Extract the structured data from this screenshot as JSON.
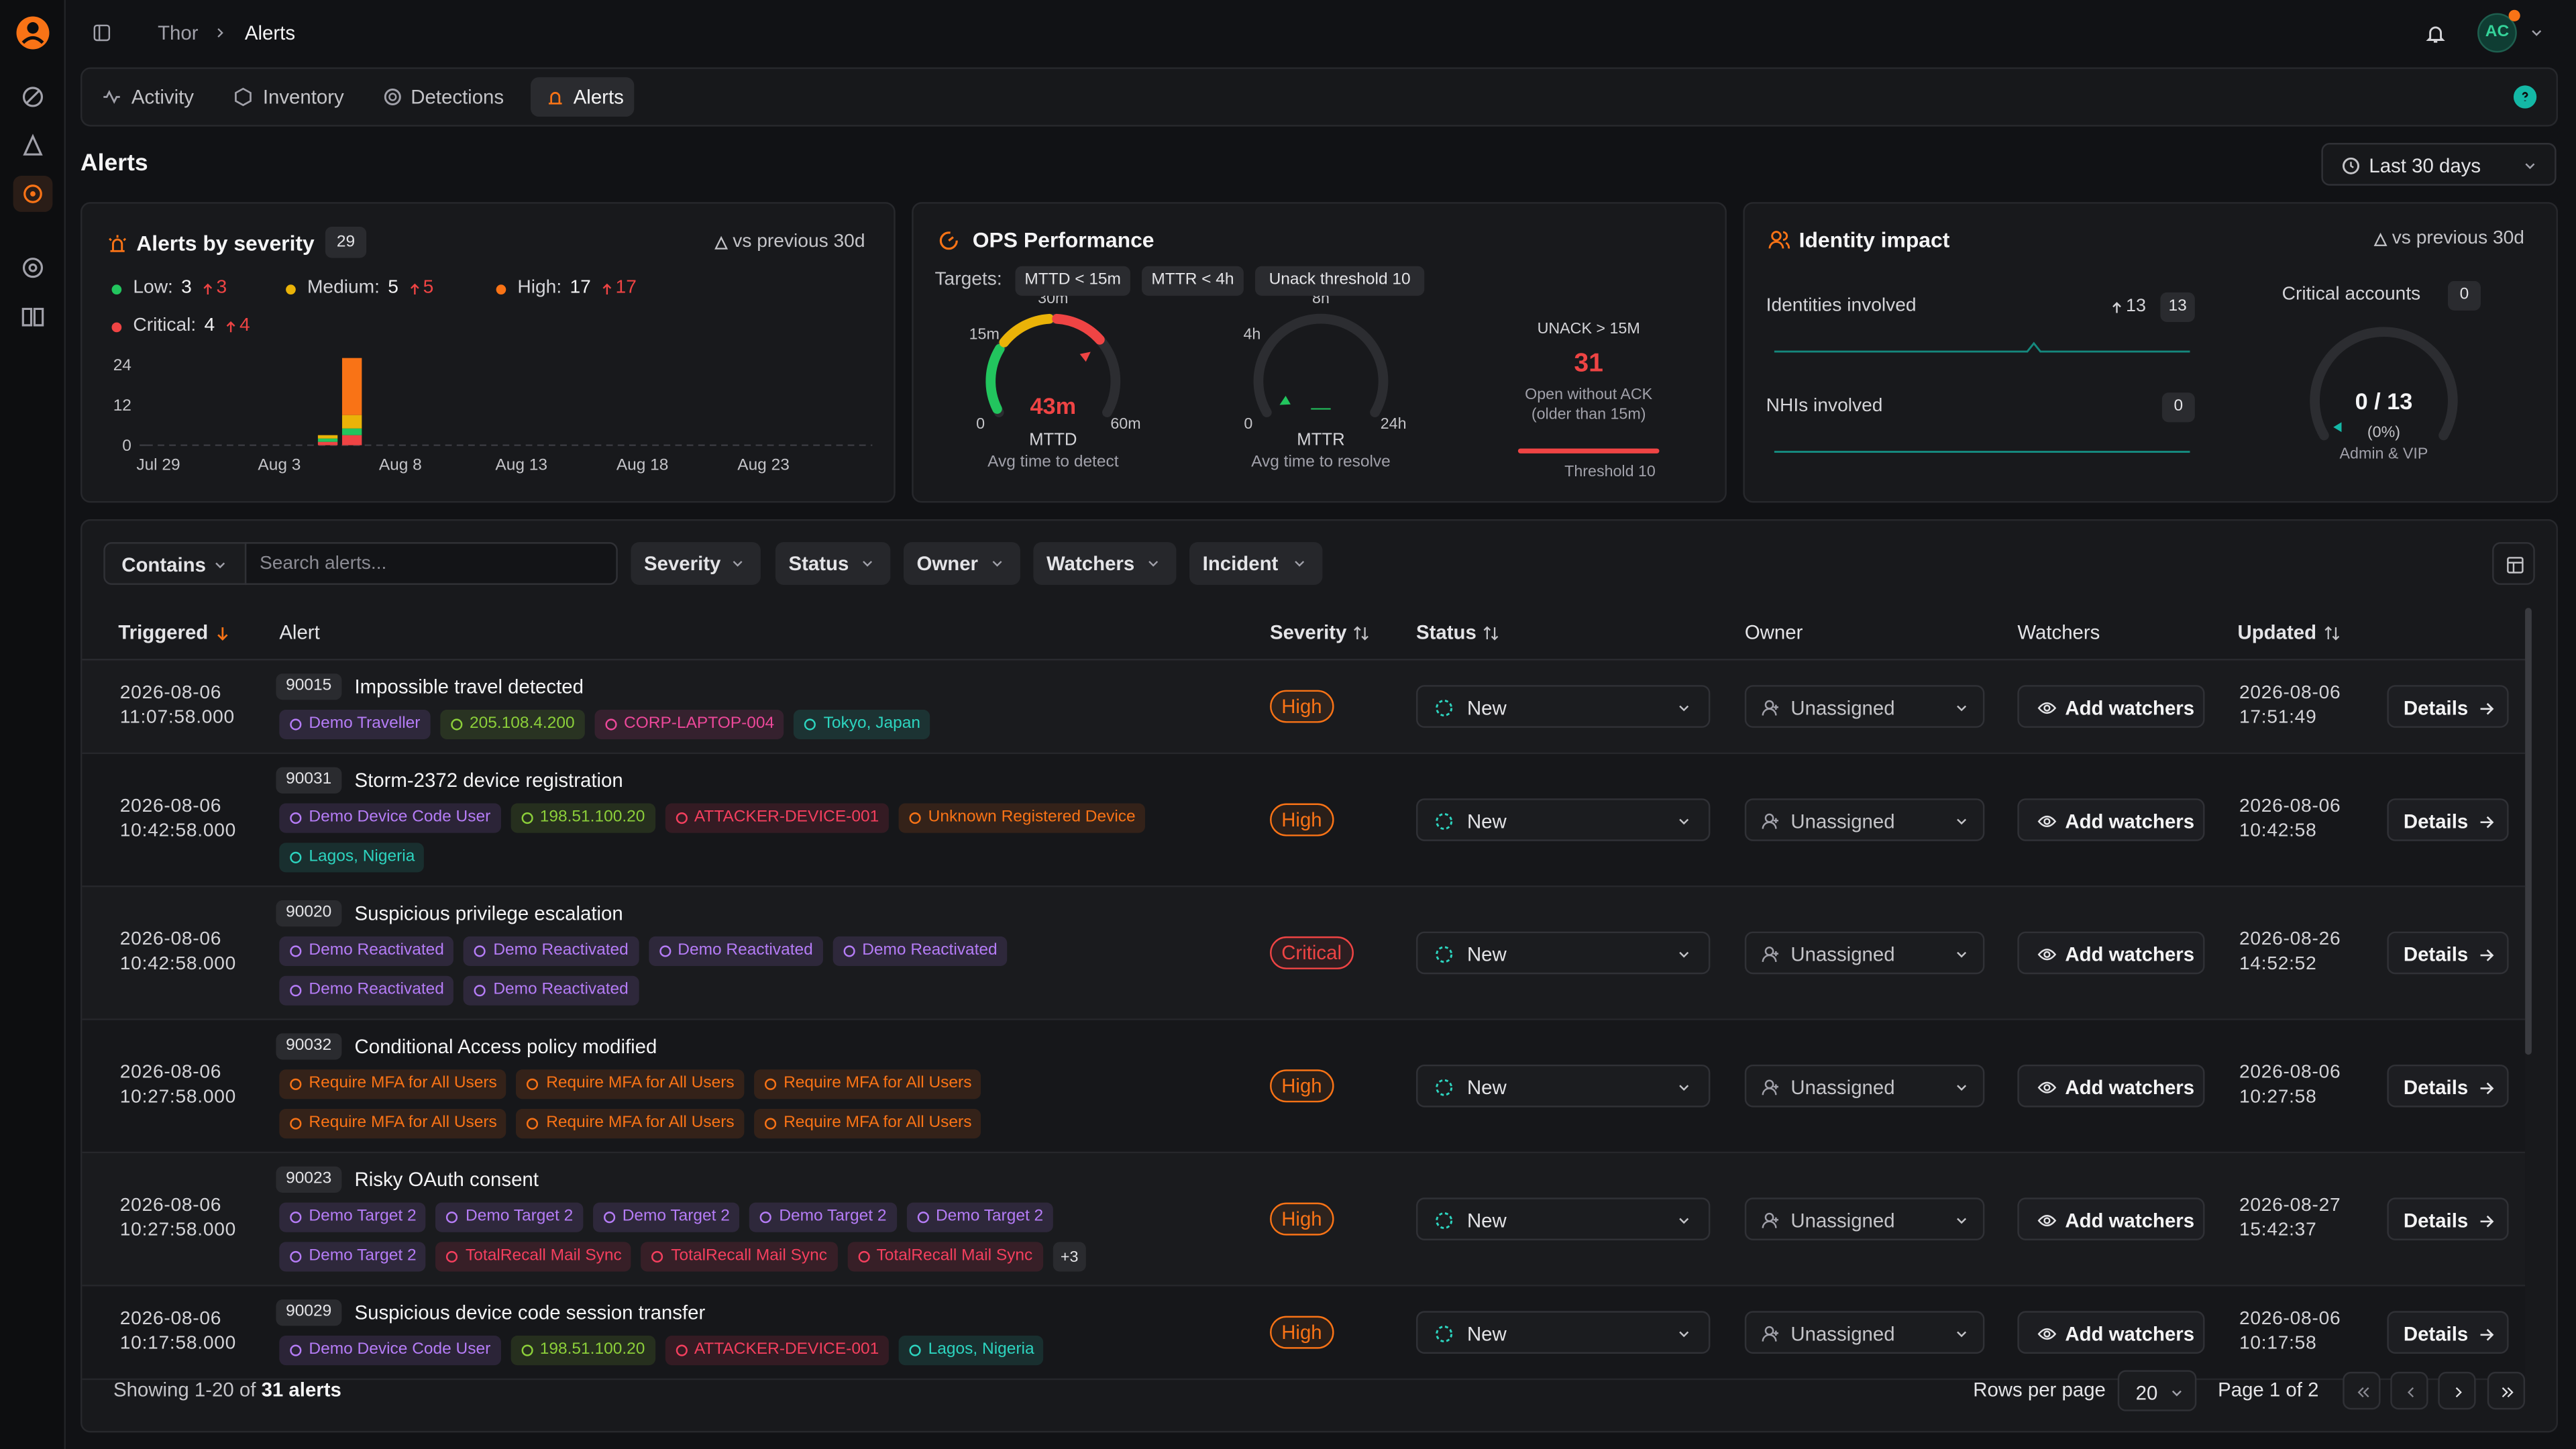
{
  "breadcrumb": [
    "Thor",
    "Alerts"
  ],
  "user_initials": "AC",
  "tabs": [
    "Activity",
    "Inventory",
    "Detections",
    "Alerts"
  ],
  "active_tab": 3,
  "page_title": "Alerts",
  "date_range": "Last 30 days",
  "severity_card": {
    "title": "Alerts by severity",
    "count": 29,
    "compare": "vs previous 30d",
    "legend": [
      {
        "label": "Low:",
        "value": 3,
        "delta": 3,
        "color": "#22c55e"
      },
      {
        "label": "Medium:",
        "value": 5,
        "delta": 5,
        "color": "#eab308"
      },
      {
        "label": "High:",
        "value": 17,
        "delta": 17,
        "color": "#f97316"
      },
      {
        "label": "Critical:",
        "value": 4,
        "delta": 4,
        "color": "#ef4444"
      }
    ],
    "chart": {
      "type": "bar",
      "stacked": true,
      "categories": [
        "Jul 29",
        null,
        null,
        null,
        null,
        "Aug 3",
        null,
        null,
        null,
        null,
        "Aug 8",
        null,
        null,
        null,
        null,
        "Aug 13",
        null,
        null,
        null,
        null,
        "Aug 18",
        null,
        null,
        null,
        null,
        "Aug 23",
        null,
        null,
        null,
        null
      ],
      "series": [
        {
          "color": "#ef4444",
          "values": [
            0,
            0,
            0,
            0,
            0,
            0,
            0,
            1,
            3,
            0,
            0,
            0,
            0,
            0,
            0,
            0,
            0,
            0,
            0,
            0,
            0,
            0,
            0,
            0,
            0,
            0,
            0,
            0,
            0,
            0
          ]
        },
        {
          "color": "#22c55e",
          "values": [
            0,
            0,
            0,
            0,
            0,
            0,
            0,
            1,
            2,
            0,
            0,
            0,
            0,
            0,
            0,
            0,
            0,
            0,
            0,
            0,
            0,
            0,
            0,
            0,
            0,
            0,
            0,
            0,
            0,
            0
          ]
        },
        {
          "color": "#eab308",
          "values": [
            0,
            0,
            0,
            0,
            0,
            0,
            0,
            1,
            4,
            0,
            0,
            0,
            0,
            0,
            0,
            0,
            0,
            0,
            0,
            0,
            0,
            0,
            0,
            0,
            0,
            0,
            0,
            0,
            0,
            0
          ]
        },
        {
          "color": "#f97316",
          "values": [
            0,
            0,
            0,
            0,
            0,
            0,
            0,
            0,
            17,
            0,
            0,
            0,
            0,
            0,
            0,
            0,
            0,
            0,
            0,
            0,
            0,
            0,
            0,
            0,
            0,
            0,
            0,
            0,
            0,
            0
          ]
        }
      ],
      "ylim": [
        0,
        26
      ],
      "yticks": [
        0,
        12,
        24
      ],
      "grid": false
    }
  },
  "ops": {
    "title": "OPS Performance",
    "targets_label": "Targets:",
    "targets": [
      "MTTD < 15m",
      "MTTR < 4h",
      "Unack threshold 10"
    ],
    "mttd": {
      "value": 43,
      "value_label": "43m",
      "ticks": [
        0,
        {
          "value": 15,
          "label": "15m"
        },
        {
          "value": 30,
          "label": "30m"
        },
        {
          "value": 60,
          "label": "60m"
        }
      ],
      "zone_colors": [
        "#22c55e",
        "#eab308",
        "#ef4444"
      ],
      "name": "MTTD",
      "caption": "Avg time to detect"
    },
    "mttr": {
      "value": null,
      "value_label": "—",
      "ticks": [
        0,
        {
          "value": 4,
          "label": "4h"
        },
        {
          "value": 8,
          "label": "8h"
        },
        {
          "value": 24,
          "label": "24h"
        }
      ],
      "zone_colors": [
        "#22c55e",
        "#eab308",
        "#ef4444"
      ],
      "name": "MTTR",
      "caption": "Avg time to resolve"
    },
    "unack": {
      "label": "UNACK > 15M",
      "value": 31,
      "desc": [
        "Open without ACK",
        "(older than 15m)"
      ],
      "threshold_label": "Threshold",
      "threshold": 10
    }
  },
  "identity": {
    "title": "Identity impact",
    "compare": "vs previous 30d",
    "identities_label": "Identities involved",
    "identities_delta": 13,
    "identities": 13,
    "nhis_label": "NHIs involved",
    "nhis": 0,
    "critical_label": "Critical accounts",
    "critical": 0,
    "critical_total": 13,
    "ratio": "0 / 13",
    "pct": "(0%)",
    "scope": "Admin & VIP"
  },
  "filters": {
    "match": "Contains",
    "search_placeholder": "Search alerts...",
    "buttons": [
      "Severity",
      "Status",
      "Owner",
      "Watchers",
      "Incident"
    ]
  },
  "columns": [
    "Triggered",
    "Alert",
    "Severity",
    "Status",
    "Owner",
    "Watchers",
    "Updated"
  ],
  "severity_colors": {
    "High": "#f97316",
    "Critical": "#ef4444"
  },
  "labels": {
    "add_watchers": "Add watchers",
    "details": "Details"
  },
  "rows": [
    {
      "date": "2026-08-06",
      "time": "11:07:58.000",
      "id": 90015,
      "title": "Impossible travel detected",
      "tags": [
        {
          "text": "Demo Traveller",
          "color": "#b57cf6"
        },
        {
          "text": "205.108.4.200",
          "color": "#8ccf3a"
        },
        {
          "text": "CORP-LAPTOP-004",
          "color": "#ec4899"
        },
        {
          "text": "Tokyo, Japan",
          "color": "#2dd4bf"
        }
      ],
      "severity": "High",
      "status": "New",
      "owner": "Unassigned",
      "updated_date": "2026-08-06",
      "updated_time": "17:51:49"
    },
    {
      "date": "2026-08-06",
      "time": "10:42:58.000",
      "id": 90031,
      "title": "Storm-2372 device registration",
      "tags": [
        {
          "text": "Demo Device Code User",
          "color": "#b57cf6"
        },
        {
          "text": "198.51.100.20",
          "color": "#8ccf3a"
        },
        {
          "text": "ATTACKER-DEVICE-001",
          "color": "#f43f5e"
        },
        {
          "text": "Unknown Registered Device",
          "color": "#f97316"
        },
        {
          "text": "Lagos, Nigeria",
          "color": "#2dd4bf"
        }
      ],
      "severity": "High",
      "status": "New",
      "owner": "Unassigned",
      "updated_date": "2026-08-06",
      "updated_time": "10:42:58"
    },
    {
      "date": "2026-08-06",
      "time": "10:42:58.000",
      "id": 90020,
      "title": "Suspicious privilege escalation",
      "tags": [
        {
          "text": "Demo Reactivated",
          "color": "#b57cf6"
        },
        {
          "text": "Demo Reactivated",
          "color": "#b57cf6"
        },
        {
          "text": "Demo Reactivated",
          "color": "#b57cf6"
        },
        {
          "text": "Demo Reactivated",
          "color": "#b57cf6"
        },
        {
          "text": "Demo Reactivated",
          "color": "#b57cf6"
        },
        {
          "text": "Demo Reactivated",
          "color": "#b57cf6"
        }
      ],
      "severity": "Critical",
      "status": "New",
      "owner": "Unassigned",
      "updated_date": "2026-08-26",
      "updated_time": "14:52:52"
    },
    {
      "date": "2026-08-06",
      "time": "10:27:58.000",
      "id": 90032,
      "title": "Conditional Access policy modified",
      "tags": [
        {
          "text": "Require MFA for All Users",
          "color": "#f97316"
        },
        {
          "text": "Require MFA for All Users",
          "color": "#f97316"
        },
        {
          "text": "Require MFA for All Users",
          "color": "#f97316"
        },
        {
          "text": "Require MFA for All Users",
          "color": "#f97316"
        },
        {
          "text": "Require MFA for All Users",
          "color": "#f97316"
        },
        {
          "text": "Require MFA for All Users",
          "color": "#f97316"
        }
      ],
      "severity": "High",
      "status": "New",
      "owner": "Unassigned",
      "updated_date": "2026-08-06",
      "updated_time": "10:27:58"
    },
    {
      "date": "2026-08-06",
      "time": "10:27:58.000",
      "id": 90023,
      "title": "Risky OAuth consent",
      "tags": [
        {
          "text": "Demo Target 2",
          "color": "#b57cf6"
        },
        {
          "text": "Demo Target 2",
          "color": "#b57cf6"
        },
        {
          "text": "Demo Target 2",
          "color": "#b57cf6"
        },
        {
          "text": "Demo Target 2",
          "color": "#b57cf6"
        },
        {
          "text": "Demo Target 2",
          "color": "#b57cf6"
        },
        {
          "text": "Demo Target 2",
          "color": "#b57cf6"
        },
        {
          "text": "TotalRecall Mail Sync",
          "color": "#f43f5e"
        },
        {
          "text": "TotalRecall Mail Sync",
          "color": "#f43f5e"
        },
        {
          "text": "TotalRecall Mail Sync",
          "color": "#f43f5e"
        }
      ],
      "more": "+3",
      "severity": "High",
      "status": "New",
      "owner": "Unassigned",
      "updated_date": "2026-08-27",
      "updated_time": "15:42:37"
    },
    {
      "date": "2026-08-06",
      "time": "10:17:58.000",
      "id": 90029,
      "title": "Suspicious device code session transfer",
      "tags": [
        {
          "text": "Demo Device Code User",
          "color": "#b57cf6"
        },
        {
          "text": "198.51.100.20",
          "color": "#8ccf3a"
        },
        {
          "text": "ATTACKER-DEVICE-001",
          "color": "#f43f5e"
        },
        {
          "text": "Lagos, Nigeria",
          "color": "#2dd4bf"
        }
      ],
      "severity": "High",
      "status": "New",
      "owner": "Unassigned",
      "updated_date": "2026-08-06",
      "updated_time": "10:17:58"
    }
  ],
  "footer": {
    "showing": "Showing 1-20 of",
    "total": "31 alerts",
    "rows_per_page_label": "Rows per page",
    "rows_per_page": 20,
    "page": "Page 1 of 2"
  }
}
